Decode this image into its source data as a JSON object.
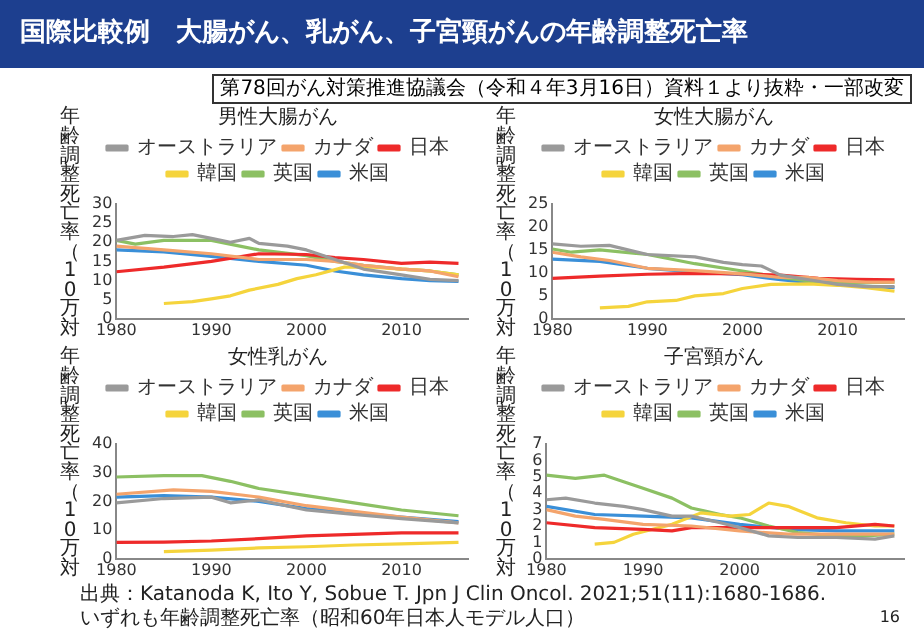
{
  "chart_data": [
    {
      "type": "line",
      "title": "男性大腸がん",
      "ylabel": "年齢調整死亡率（10万対",
      "legend": "top",
      "xlim": [
        1980,
        2017
      ],
      "xticks": [
        1980,
        1990,
        2000,
        2010
      ],
      "ylim": [
        0,
        30
      ],
      "yticks": [
        0,
        5,
        10,
        15,
        20,
        25,
        30
      ],
      "annotations": [
        "国際比較例　大腸がん、乳がん、子宮頸がんの年齢調整死亡率",
        "第78回がん対策推進協議会（令和４年3月16日）資料１より抜粋・一部改変"
      ],
      "series": [
        {
          "name": "オーストラリア",
          "color": "#9a9a9a",
          "x": [
            1980,
            1983,
            1986,
            1988,
            1990,
            1992,
            1994,
            1995,
            1998,
            2000,
            2003,
            2006,
            2010,
            2013,
            2016
          ],
          "values": [
            20.5,
            21.8,
            21.5,
            22,
            21,
            20,
            21,
            19.7,
            19,
            18,
            15.5,
            13,
            11.5,
            10.3,
            10
          ]
        },
        {
          "name": "カナダ",
          "color": "#f4a46c",
          "x": [
            1980,
            1985,
            1990,
            1995,
            2000,
            2003,
            2006,
            2010,
            2013,
            2016
          ],
          "values": [
            19,
            18,
            17,
            15.5,
            15.5,
            15,
            14,
            13,
            12.5,
            11
          ]
        },
        {
          "name": "日本",
          "color": "#ee2a2a",
          "x": [
            1980,
            1985,
            1990,
            1995,
            2000,
            2003,
            2006,
            2010,
            2013,
            2016
          ],
          "values": [
            12.3,
            13.5,
            15,
            17,
            16.8,
            16,
            15.5,
            14.5,
            14.8,
            14.5
          ]
        },
        {
          "name": "韓国",
          "color": "#f5d43c",
          "x": [
            1985,
            1988,
            1990,
            1992,
            1994,
            1997,
            1999,
            2001,
            2004,
            2007,
            2010,
            2013,
            2016
          ],
          "values": [
            4,
            4.5,
            5.2,
            6,
            7.5,
            9,
            10.5,
            11.5,
            13.5,
            13.5,
            13,
            12.5,
            11.5
          ]
        },
        {
          "name": "英国",
          "color": "#8cc063",
          "x": [
            1980,
            1982,
            1985,
            1990,
            1993,
            1995,
            2000,
            2003,
            2006,
            2010,
            2013,
            2016
          ],
          "values": [
            20.5,
            19.5,
            20.5,
            20.5,
            19,
            18,
            16.5,
            15,
            14,
            13,
            12.5,
            11.5
          ]
        },
        {
          "name": "米国",
          "color": "#3a8fd8",
          "x": [
            1980,
            1985,
            1990,
            1995,
            2000,
            2003,
            2006,
            2010,
            2013,
            2016
          ],
          "values": [
            18,
            17.5,
            16.3,
            15,
            14,
            12.5,
            11.5,
            10.5,
            10,
            9.8
          ]
        }
      ]
    },
    {
      "type": "line",
      "title": "女性大腸がん",
      "ylabel": "年齢調整死亡率（10万対",
      "legend": "top",
      "xlim": [
        1980,
        2017
      ],
      "xticks": [
        1980,
        1990,
        2000,
        2010
      ],
      "ylim": [
        0,
        25
      ],
      "yticks": [
        0,
        5,
        10,
        15,
        20,
        25
      ],
      "series": [
        {
          "name": "オーストラリア",
          "color": "#9a9a9a",
          "x": [
            1980,
            1983,
            1986,
            1990,
            1995,
            1998,
            2000,
            2002,
            2004,
            2007,
            2010,
            2013,
            2016
          ],
          "values": [
            16.3,
            15.8,
            16,
            14,
            13.5,
            12.3,
            11.8,
            11.5,
            9.5,
            8.5,
            7.5,
            7,
            7
          ]
        },
        {
          "name": "カナダ",
          "color": "#f4a46c",
          "x": [
            1980,
            1983,
            1986,
            1990,
            1995,
            2000,
            2004,
            2007,
            2010,
            2013,
            2016
          ],
          "values": [
            14.5,
            13.5,
            12.7,
            11,
            10.5,
            9.8,
            9,
            9,
            8.3,
            8,
            8
          ]
        },
        {
          "name": "日本",
          "color": "#ee2a2a",
          "x": [
            1980,
            1985,
            1990,
            1995,
            2000,
            2004,
            2008,
            2012,
            2016
          ],
          "values": [
            8.8,
            9.3,
            9.7,
            9.9,
            9.8,
            9.5,
            8.8,
            8.6,
            8.5
          ]
        },
        {
          "name": "韓国",
          "color": "#f5d43c",
          "x": [
            1985,
            1988,
            1990,
            1993,
            1995,
            1998,
            2000,
            2003,
            2007,
            2010,
            2013,
            2016
          ],
          "values": [
            2.4,
            2.7,
            3.7,
            4,
            5,
            5.5,
            6.6,
            7.5,
            7.6,
            7.3,
            6.8,
            6
          ]
        },
        {
          "name": "英国",
          "color": "#8cc063",
          "x": [
            1980,
            1982,
            1985,
            1990,
            1995,
            2000,
            2004,
            2008,
            2012,
            2016
          ],
          "values": [
            15.2,
            14.5,
            15,
            14,
            12,
            10.4,
            9,
            8,
            7.8,
            8
          ]
        },
        {
          "name": "米国",
          "color": "#3a8fd8",
          "x": [
            1980,
            1985,
            1990,
            1995,
            2000,
            2004,
            2008,
            2012,
            2016
          ],
          "values": [
            13,
            12.5,
            11,
            10.2,
            9.6,
            8.5,
            7.7,
            7.2,
            6.8
          ]
        }
      ]
    },
    {
      "type": "line",
      "title": "女性乳がん",
      "ylabel": "年齢調整死亡率（10万対",
      "legend": "top",
      "xlim": [
        1980,
        2017
      ],
      "xticks": [
        1980,
        1990,
        2000,
        2010
      ],
      "ylim": [
        0,
        40
      ],
      "yticks": [
        0,
        10,
        20,
        30,
        40
      ],
      "series": [
        {
          "name": "オーストラリア",
          "color": "#9a9a9a",
          "x": [
            1980,
            1985,
            1990,
            1992,
            1995,
            2000,
            2005,
            2010,
            2016
          ],
          "values": [
            19.5,
            21,
            21.5,
            19.5,
            20.5,
            17,
            15.5,
            14,
            12.5
          ]
        },
        {
          "name": "カナダ",
          "color": "#f4a46c",
          "x": [
            1980,
            1986,
            1990,
            1995,
            2000,
            2005,
            2010,
            2016
          ],
          "values": [
            22.5,
            24,
            23.5,
            21.5,
            18.5,
            16.5,
            14.5,
            12.5
          ]
        },
        {
          "name": "日本",
          "color": "#ee2a2a",
          "x": [
            1980,
            1985,
            1990,
            1995,
            2000,
            2005,
            2010,
            2016
          ],
          "values": [
            5.7,
            5.8,
            6.2,
            7,
            8,
            8.5,
            9,
            9
          ]
        },
        {
          "name": "韓国",
          "color": "#f5d43c",
          "x": [
            1985,
            1990,
            1995,
            2000,
            2005,
            2010,
            2016
          ],
          "values": [
            2.5,
            3,
            3.8,
            4.2,
            4.8,
            5.2,
            5.7
          ]
        },
        {
          "name": "英国",
          "color": "#8cc063",
          "x": [
            1980,
            1985,
            1989,
            1992,
            1995,
            2000,
            2005,
            2010,
            2016
          ],
          "values": [
            28.5,
            29,
            29,
            27,
            24.5,
            22,
            19.5,
            17,
            15
          ]
        },
        {
          "name": "米国",
          "color": "#3a8fd8",
          "x": [
            1980,
            1985,
            1990,
            1995,
            2000,
            2005,
            2010,
            2016
          ],
          "values": [
            21.5,
            22,
            21.5,
            20,
            17.5,
            16,
            14.5,
            13
          ]
        }
      ]
    },
    {
      "type": "line",
      "title": "子宮頸がん",
      "ylabel": "年齢調整死亡率（10万対",
      "legend": "top",
      "xlim": [
        1980,
        2017
      ],
      "xticks": [
        1980,
        1990,
        2000,
        2010
      ],
      "ylim": [
        0,
        7
      ],
      "yticks": [
        0,
        1,
        2,
        3,
        4,
        5,
        6,
        7
      ],
      "annotations": [
        "出典：Katanoda K, Ito Y, Sobue T. Jpn J Clin Oncol. 2021;51(11):1680-1686.",
        "いずれも年齢調整死亡率（昭和60年日本人モデル人口）",
        "16"
      ],
      "series": [
        {
          "name": "オーストラリア",
          "color": "#9a9a9a",
          "x": [
            1980,
            1982,
            1985,
            1988,
            1990,
            1993,
            1995,
            1998,
            2000,
            2003,
            2006,
            2010,
            2014,
            2016
          ],
          "values": [
            3.6,
            3.7,
            3.4,
            3.2,
            3,
            2.6,
            2.6,
            2.2,
            1.9,
            1.4,
            1.3,
            1.3,
            1.2,
            1.4
          ]
        },
        {
          "name": "カナダ",
          "color": "#f4a46c",
          "x": [
            1980,
            1983,
            1986,
            1990,
            1995,
            2000,
            2005,
            2010,
            2016
          ],
          "values": [
            3,
            2.6,
            2.4,
            2.1,
            2,
            1.7,
            1.5,
            1.5,
            1.5
          ]
        },
        {
          "name": "日本",
          "color": "#ee2a2a",
          "x": [
            1980,
            1985,
            1990,
            1993,
            1995,
            2000,
            2005,
            2010,
            2014,
            2016
          ],
          "values": [
            2.2,
            1.9,
            1.8,
            1.7,
            1.9,
            1.9,
            1.9,
            1.9,
            2.1,
            2
          ]
        },
        {
          "name": "韓国",
          "color": "#f5d43c",
          "x": [
            1985,
            1987,
            1989,
            1991,
            1993,
            1996,
            1999,
            2001,
            2003,
            2005,
            2008,
            2011,
            2014,
            2016
          ],
          "values": [
            0.9,
            1,
            1.5,
            1.8,
            2.1,
            2.8,
            2.6,
            2.7,
            3.4,
            3.2,
            2.5,
            2.2,
            2,
            2
          ]
        },
        {
          "name": "英国",
          "color": "#8cc063",
          "x": [
            1980,
            1983,
            1986,
            1988,
            1990,
            1993,
            1995,
            1998,
            2000,
            2003,
            2006,
            2010,
            2013,
            2016
          ],
          "values": [
            5.1,
            4.9,
            5.1,
            4.7,
            4.3,
            3.7,
            3.1,
            2.7,
            2.5,
            2,
            1.6,
            1.4,
            1.4,
            1.5
          ]
        },
        {
          "name": "米国",
          "color": "#3a8fd8",
          "x": [
            1980,
            1985,
            1990,
            1995,
            2000,
            2005,
            2010,
            2016
          ],
          "values": [
            3.2,
            2.7,
            2.6,
            2.5,
            2.1,
            1.8,
            1.7,
            1.7
          ]
        }
      ]
    }
  ]
}
